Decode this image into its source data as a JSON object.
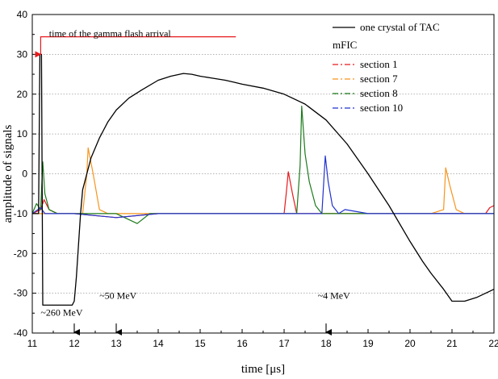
{
  "chart_data": {
    "type": "line",
    "xlabel": "time [μs]",
    "ylabel": "amplitude of signals",
    "xlim": [
      11,
      22
    ],
    "ylim": [
      -40,
      40
    ],
    "x_ticks": [
      11,
      12,
      13,
      14,
      15,
      16,
      17,
      18,
      19,
      20,
      21,
      22
    ],
    "y_ticks": [
      -40,
      -30,
      -20,
      -10,
      0,
      10,
      20,
      30,
      40
    ],
    "grid": "horizontal dotted",
    "legend_position": "top-right",
    "legend_group_title": "mFIC",
    "series": [
      {
        "name": "one crystal of TAC",
        "color": "#000000",
        "style": "solid",
        "x": [
          11.0,
          11.15,
          11.18,
          11.2,
          11.22,
          11.25,
          11.3,
          11.6,
          11.95,
          12.0,
          12.05,
          12.1,
          12.15,
          12.2,
          12.3,
          12.4,
          12.6,
          12.8,
          13.0,
          13.3,
          13.6,
          14.0,
          14.3,
          14.6,
          14.8,
          15.0,
          15.3,
          15.6,
          15.8,
          16.0,
          16.5,
          17.0,
          17.5,
          18.0,
          18.5,
          19.0,
          19.5,
          20.0,
          20.3,
          20.5,
          20.8,
          21.0,
          21.3,
          21.6,
          22.0
        ],
        "y": [
          -10,
          -10,
          30,
          30,
          30,
          -33,
          -33,
          -33,
          -33,
          -32,
          -26,
          -18,
          -10,
          -4,
          0,
          4,
          9,
          13,
          16,
          19,
          21,
          23.5,
          24.5,
          25.2,
          25,
          24.5,
          24,
          23.5,
          23,
          22.5,
          21.5,
          20,
          17.5,
          13.5,
          7.5,
          0,
          -8,
          -17,
          -22,
          -25,
          -29,
          -32,
          -32,
          -31,
          -29
        ]
      },
      {
        "name": "section 1",
        "color": "#e8191c",
        "style": "dashdot",
        "x": [
          11.0,
          11.2,
          11.28,
          11.4,
          11.6,
          12.0,
          13.0,
          14.0,
          15.0,
          16.0,
          16.5,
          17.0,
          17.05,
          17.1,
          17.2,
          17.3,
          17.5,
          18.0,
          19.0,
          20.0,
          21.0,
          21.8,
          21.9,
          22.0
        ],
        "y": [
          -10,
          -9,
          -6.5,
          -9,
          -10,
          -10,
          -11,
          -10,
          -10,
          -10,
          -10,
          -10,
          -5,
          0.5,
          -5,
          -10,
          -10,
          -10,
          -10,
          -10,
          -10,
          -10,
          -8.5,
          -8
        ]
      },
      {
        "name": "section 7",
        "color": "#f7941d",
        "style": "dashdot",
        "x": [
          11.0,
          11.5,
          12.0,
          12.2,
          12.3,
          12.33,
          12.45,
          12.6,
          12.8,
          13.0,
          14.0,
          15.0,
          16.0,
          17.0,
          18.0,
          19.0,
          20.0,
          20.5,
          20.8,
          20.85,
          20.95,
          21.1,
          21.3,
          22.0
        ],
        "y": [
          -10,
          -10,
          -10,
          -10,
          0,
          6.5,
          0,
          -9,
          -10,
          -10,
          -10,
          -10,
          -10,
          -10,
          -10,
          -10,
          -10,
          -10,
          -9,
          1.5,
          -3,
          -9,
          -10,
          -10
        ]
      },
      {
        "name": "section 8",
        "color": "#1c7a1c",
        "style": "dashdot",
        "x": [
          11.0,
          11.1,
          11.2,
          11.25,
          11.3,
          11.4,
          11.6,
          12.0,
          13.0,
          13.5,
          13.8,
          14.0,
          15.0,
          16.0,
          17.0,
          17.3,
          17.38,
          17.42,
          17.5,
          17.6,
          17.75,
          17.9,
          18.0,
          19.0,
          20.0,
          21.0,
          22.0
        ],
        "y": [
          -10,
          -7.5,
          -9,
          3,
          -5,
          -9,
          -10,
          -10,
          -10,
          -12.5,
          -10,
          -10,
          -10,
          -10,
          -10,
          -10,
          2,
          17,
          5,
          -2,
          -8,
          -10,
          -10,
          -10,
          -10,
          -10,
          -10
        ]
      },
      {
        "name": "section 10",
        "color": "#2233cc",
        "style": "dashdot",
        "x": [
          11.0,
          11.2,
          11.3,
          11.5,
          12.0,
          13.0,
          14.0,
          15.0,
          16.0,
          17.0,
          17.5,
          17.9,
          17.98,
          18.05,
          18.15,
          18.3,
          18.45,
          19.0,
          20.0,
          21.0,
          22.0
        ],
        "y": [
          -10,
          -8.5,
          -10,
          -10,
          -10,
          -11,
          -10,
          -10,
          -10,
          -10,
          -10,
          -10,
          4.5,
          -2,
          -8,
          -10,
          -9,
          -10,
          -10,
          -10,
          -10
        ]
      }
    ],
    "annotations": [
      {
        "text": "time of the gamma flash arrival",
        "x": 11.4,
        "y": 34.4
      },
      {
        "text": "~260 MeV",
        "x": 11.2,
        "y": -35.6
      },
      {
        "text": "~50 MeV",
        "x": 12.6,
        "y": -31.4
      },
      {
        "text": "~4 MeV",
        "x": 17.8,
        "y": -31.4
      }
    ],
    "energy_markers": [
      12.0,
      13.0,
      18.0
    ],
    "gamma_flash_time": 11.2,
    "gamma_flash_color": "#e8191c"
  }
}
